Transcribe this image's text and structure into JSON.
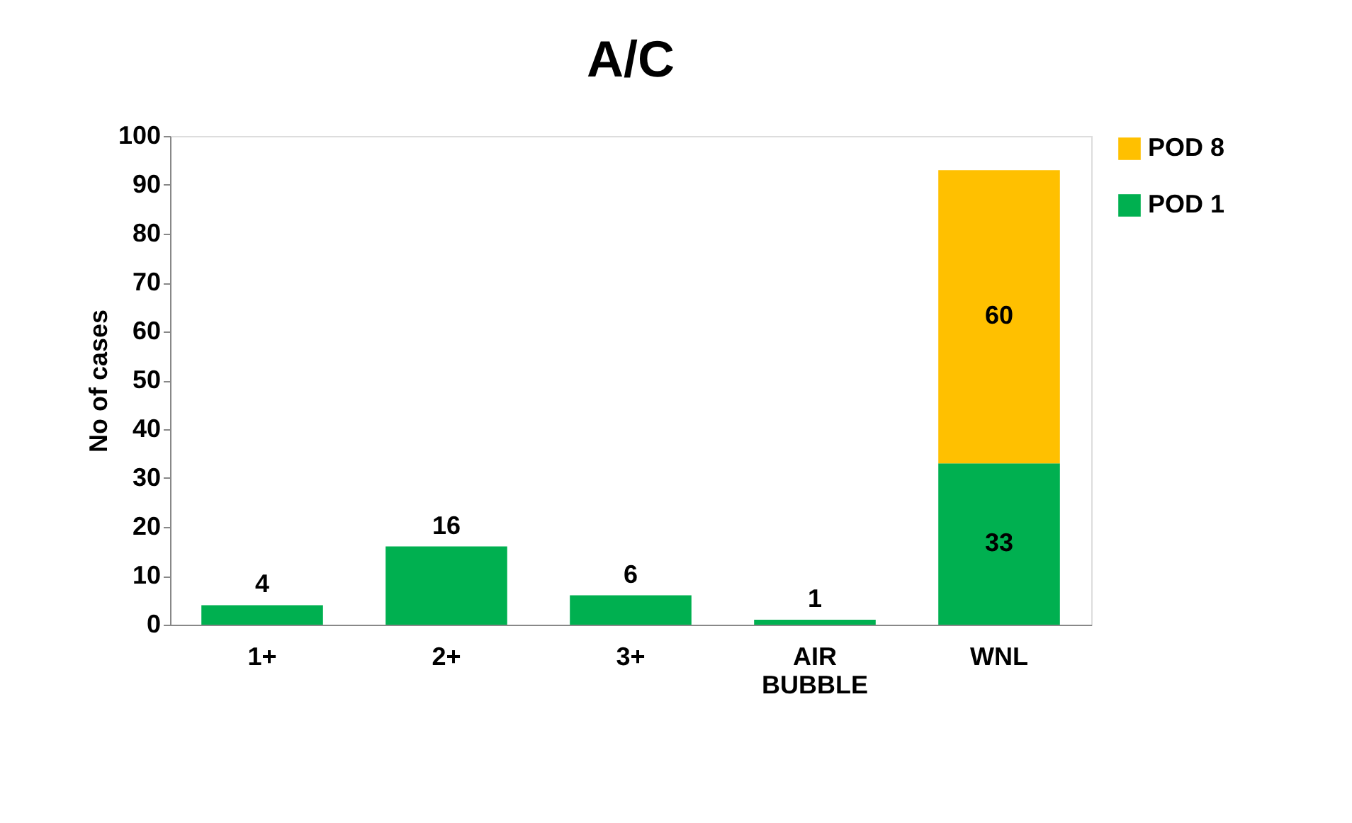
{
  "chart_data": {
    "type": "bar",
    "title": "A/C",
    "ylabel": "No of cases",
    "categories": [
      "1+",
      "2+",
      "3+",
      "AIR BUBBLE",
      "WNL"
    ],
    "series": [
      {
        "name": "POD 1",
        "color": "#00b050",
        "values": [
          4,
          16,
          6,
          1,
          33
        ]
      },
      {
        "name": "POD 8",
        "color": "#ffc000",
        "values": [
          null,
          null,
          null,
          null,
          60
        ]
      }
    ],
    "stacked": true,
    "ylim": [
      0,
      100
    ],
    "yticks": [
      0,
      10,
      20,
      30,
      40,
      50,
      60,
      70,
      80,
      90,
      100
    ],
    "grid": false,
    "legend": "right",
    "data_labels": true
  }
}
